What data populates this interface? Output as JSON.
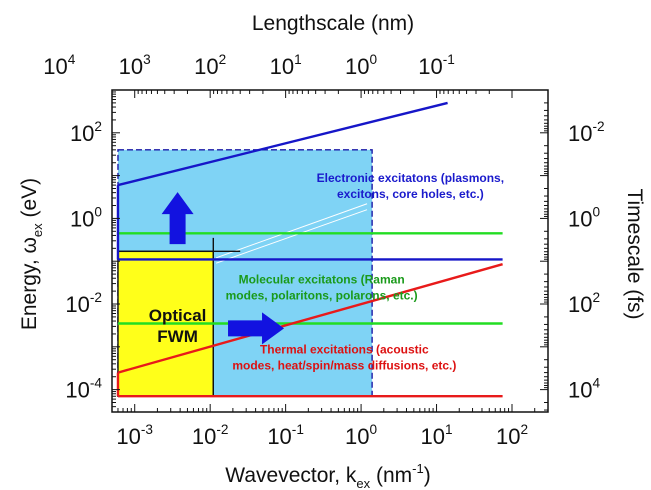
{
  "chart_data": {
    "type": "line",
    "title": "",
    "xlabel": "Wavevector, k",
    "xlabel_sub": "ex",
    "xlabel_unit_pre": " (nm",
    "xlabel_unit_sup": "-1",
    "xlabel_unit_post": ")",
    "ylabel_pre": "Energy, ω",
    "ylabel_sub": "ex",
    "ylabel_post": " (eV)",
    "top_label": "Lengthscale (nm)",
    "right_label": "Timescale (fs)",
    "x_scale": "log",
    "y_scale": "log",
    "xlim": [
      0.0005,
      300
    ],
    "ylim": [
      3e-05,
      1000
    ],
    "x_ticks": [
      {
        "base": "10",
        "exp": "-3",
        "value": 0.001
      },
      {
        "base": "10",
        "exp": "-2",
        "value": 0.01
      },
      {
        "base": "10",
        "exp": "-1",
        "value": 0.1
      },
      {
        "base": "10",
        "exp": "0",
        "value": 1
      },
      {
        "base": "10",
        "exp": "1",
        "value": 10
      },
      {
        "base": "10",
        "exp": "2",
        "value": 100
      }
    ],
    "y_ticks": [
      {
        "base": "10",
        "exp": "2",
        "value": 100
      },
      {
        "base": "10",
        "exp": "0",
        "value": 1
      },
      {
        "base": "10",
        "exp": "-2",
        "value": 0.01
      },
      {
        "base": "10",
        "exp": "-4",
        "value": 0.0001
      }
    ],
    "top_ticks": [
      {
        "base": "10",
        "exp": "4",
        "value": 10000
      },
      {
        "base": "10",
        "exp": "3",
        "value": 1000
      },
      {
        "base": "10",
        "exp": "2",
        "value": 100
      },
      {
        "base": "10",
        "exp": "1",
        "value": 10
      },
      {
        "base": "10",
        "exp": "0",
        "value": 1
      },
      {
        "base": "10",
        "exp": "-1",
        "value": 0.1
      }
    ],
    "right_ticks": [
      {
        "base": "10",
        "exp": "-2",
        "value": 0.01
      },
      {
        "base": "10",
        "exp": "0",
        "value": 1
      },
      {
        "base": "10",
        "exp": "2",
        "value": 100
      },
      {
        "base": "10",
        "exp": "4",
        "value": 10000
      }
    ],
    "regions": [
      {
        "name": "blue-box",
        "x": [
          0.0006,
          1.4
        ],
        "y": [
          7e-05,
          40
        ],
        "color": "#7fd3f5",
        "border": "#1a1aa8"
      },
      {
        "name": "yellow-box",
        "x": [
          0.0006,
          0.011
        ],
        "y": [
          7e-05,
          0.17
        ],
        "color": "#ffff1a",
        "border": "#111111"
      }
    ],
    "series": [
      {
        "name": "electronic",
        "color": "#1616c8",
        "x": [
          0.0006,
          14
        ],
        "y": [
          6,
          500
        ]
      },
      {
        "name": "electronic-plateau",
        "color": "#1616c8",
        "x": [
          0.0006,
          75
        ],
        "y": [
          0.11,
          0.11
        ]
      },
      {
        "name": "molecular-top",
        "color": "#22dd22",
        "x": [
          0.0006,
          75
        ],
        "y": [
          0.45,
          0.45
        ]
      },
      {
        "name": "molecular-bottom",
        "color": "#22dd22",
        "x": [
          0.0006,
          75
        ],
        "y": [
          0.0035,
          0.0035
        ]
      },
      {
        "name": "thermal",
        "color": "#e81a1a",
        "x": [
          0.0006,
          75
        ],
        "y": [
          0.00025,
          0.085
        ]
      },
      {
        "name": "thermal-floor",
        "color": "#e81a1a",
        "x": [
          0.0006,
          75
        ],
        "y": [
          7e-05,
          7e-05
        ]
      }
    ],
    "annotations": [
      {
        "lines": [
          "Electronic excitatons (plasmons,",
          "excitons, core holes, etc.)"
        ],
        "color": "#1a1acc",
        "x": 4.5,
        "y": 7
      },
      {
        "lines": [
          "Molecular excitatons (Raman",
          "modes, polaritons, polarons, etc.)"
        ],
        "color": "#1a9a1a",
        "x": 0.3,
        "y": 0.03
      },
      {
        "lines": [
          "Thermal excitations (acoustic",
          "modes, heat/spin/mass diffusions, etc.)"
        ],
        "color": "#dd1111",
        "x": 0.6,
        "y": 0.0007
      },
      {
        "lines": [
          "Optical",
          "FWM"
        ],
        "color": "#111111",
        "x": 0.0037,
        "y": 0.004,
        "large": true
      }
    ],
    "arrows": [
      {
        "name": "up-arrow",
        "direction": "up",
        "color": "#1212e0",
        "x": 0.0037,
        "y": 0.25
      },
      {
        "name": "right-arrow",
        "direction": "right",
        "color": "#1212e0",
        "x": 0.055,
        "y": 0.0027
      }
    ],
    "grid": false,
    "legend": "none"
  }
}
